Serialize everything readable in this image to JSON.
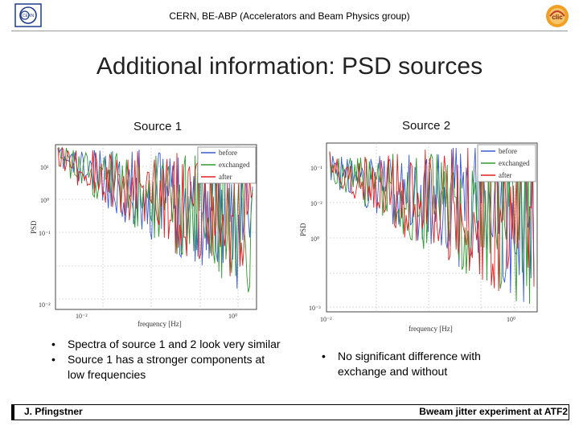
{
  "header": {
    "text": "CERN, BE-ABP (Accelerators and Beam Physics group)"
  },
  "title": "Additional information: PSD sources",
  "left": {
    "heading": "Source 1",
    "chart_data": {
      "type": "line",
      "xlabel": "frequency [Hz]",
      "ylabel": "PSD",
      "x_scale": "log",
      "y_scale": "log",
      "x_ticks": [
        "10⁻²",
        "10⁰"
      ],
      "y_ticks": [
        "10¹",
        "10⁰",
        "10⁻¹",
        "10⁻²"
      ],
      "series": [
        {
          "name": "before",
          "color": "#3b5bd6"
        },
        {
          "name": "exchanged",
          "color": "#2e9a2e"
        },
        {
          "name": "after",
          "color": "#e02020"
        }
      ],
      "legend": "top-right",
      "grid": true
    },
    "bullets": [
      "Spectra of source 1 and 2 look very similar",
      "Source 1 has a stronger components at low frequencies"
    ]
  },
  "right": {
    "heading": "Source 2",
    "chart_data": {
      "type": "line",
      "xlabel": "frequency [Hz]",
      "ylabel": "PSD",
      "x_scale": "log",
      "y_scale": "log",
      "x_ticks": [
        "10⁻²",
        "10⁰"
      ],
      "y_ticks": [
        "10⁻¹",
        "10⁻²",
        "10⁰",
        "10⁻³"
      ],
      "series": [
        {
          "name": "before",
          "color": "#3b5bd6"
        },
        {
          "name": "exchanged",
          "color": "#2e9a2e"
        },
        {
          "name": "after",
          "color": "#e02020"
        }
      ],
      "legend": "top-right",
      "grid": true
    },
    "bullets": [
      "No significant difference with exchange and without"
    ]
  },
  "footer": {
    "left": "J. Pfingstner",
    "right": "Bweam jitter experiment at ATF2"
  }
}
